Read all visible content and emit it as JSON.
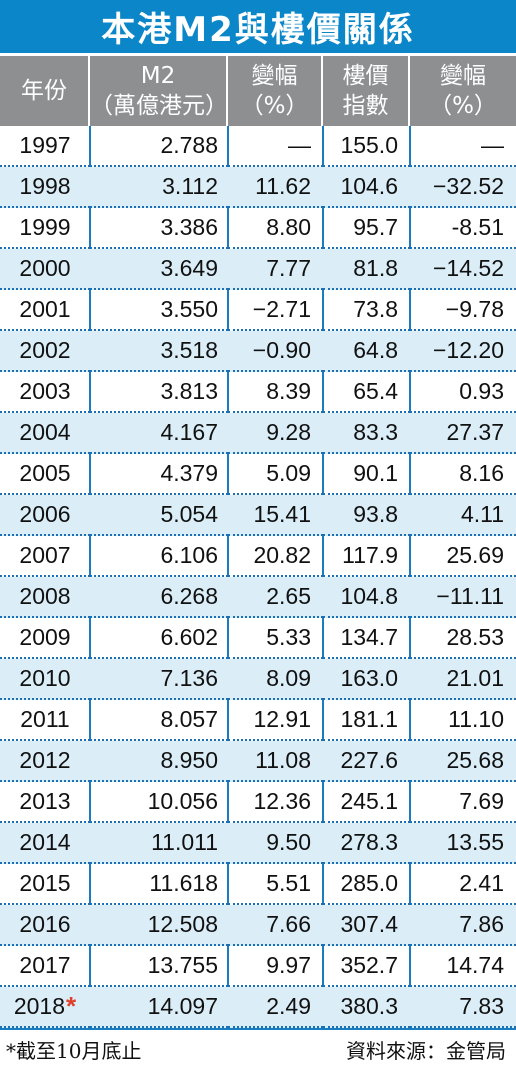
{
  "title": "本港M2與樓價關係",
  "headers": [
    {
      "line1": "年份",
      "line2": ""
    },
    {
      "line1": "M2",
      "line2": "（萬億港元）"
    },
    {
      "line1": "變幅",
      "line2": "（%）"
    },
    {
      "line1": "樓價",
      "line2": "指數"
    },
    {
      "line1": "變幅",
      "line2": "（%）"
    }
  ],
  "rows": [
    {
      "year": "1997",
      "m2": "2.788",
      "m2_change": "—",
      "index": "155.0",
      "index_change": "—"
    },
    {
      "year": "1998",
      "m2": "3.112",
      "m2_change": "11.62",
      "index": "104.6",
      "index_change": "−32.52"
    },
    {
      "year": "1999",
      "m2": "3.386",
      "m2_change": "8.80",
      "index": "95.7",
      "index_change": "-8.51"
    },
    {
      "year": "2000",
      "m2": "3.649",
      "m2_change": "7.77",
      "index": "81.8",
      "index_change": "−14.52"
    },
    {
      "year": "2001",
      "m2": "3.550",
      "m2_change": "−2.71",
      "index": "73.8",
      "index_change": "−9.78"
    },
    {
      "year": "2002",
      "m2": "3.518",
      "m2_change": "−0.90",
      "index": "64.8",
      "index_change": "−12.20"
    },
    {
      "year": "2003",
      "m2": "3.813",
      "m2_change": "8.39",
      "index": "65.4",
      "index_change": "0.93"
    },
    {
      "year": "2004",
      "m2": "4.167",
      "m2_change": "9.28",
      "index": "83.3",
      "index_change": "27.37"
    },
    {
      "year": "2005",
      "m2": "4.379",
      "m2_change": "5.09",
      "index": "90.1",
      "index_change": "8.16"
    },
    {
      "year": "2006",
      "m2": "5.054",
      "m2_change": "15.41",
      "index": "93.8",
      "index_change": "4.11"
    },
    {
      "year": "2007",
      "m2": "6.106",
      "m2_change": "20.82",
      "index": "117.9",
      "index_change": "25.69"
    },
    {
      "year": "2008",
      "m2": "6.268",
      "m2_change": "2.65",
      "index": "104.8",
      "index_change": "−11.11"
    },
    {
      "year": "2009",
      "m2": "6.602",
      "m2_change": "5.33",
      "index": "134.7",
      "index_change": "28.53"
    },
    {
      "year": "2010",
      "m2": "7.136",
      "m2_change": "8.09",
      "index": "163.0",
      "index_change": "21.01"
    },
    {
      "year": "2011",
      "m2": "8.057",
      "m2_change": "12.91",
      "index": "181.1",
      "index_change": "11.10"
    },
    {
      "year": "2012",
      "m2": "8.950",
      "m2_change": "11.08",
      "index": "227.6",
      "index_change": "25.68"
    },
    {
      "year": "2013",
      "m2": "10.056",
      "m2_change": "12.36",
      "index": "245.1",
      "index_change": "7.69"
    },
    {
      "year": "2014",
      "m2": "11.011",
      "m2_change": "9.50",
      "index": "278.3",
      "index_change": "13.55"
    },
    {
      "year": "2015",
      "m2": "11.618",
      "m2_change": "5.51",
      "index": "285.0",
      "index_change": "2.41"
    },
    {
      "year": "2016",
      "m2": "12.508",
      "m2_change": "7.66",
      "index": "307.4",
      "index_change": "7.86"
    },
    {
      "year": "2017",
      "m2": "13.755",
      "m2_change": "9.97",
      "index": "352.7",
      "index_change": "14.74"
    },
    {
      "year": "2018",
      "star": "*",
      "m2": "14.097",
      "m2_change": "2.49",
      "index": "380.3",
      "index_change": "7.83"
    }
  ],
  "footer": {
    "note": "*截至10月底止",
    "source": "資料來源：金管局"
  },
  "colors": {
    "title_bg": "#0a86c9",
    "header_bg": "#8d8f91",
    "alt_row_bg": "#dbeef8",
    "rule": "#1a7cc0",
    "star": "#e0402a"
  }
}
